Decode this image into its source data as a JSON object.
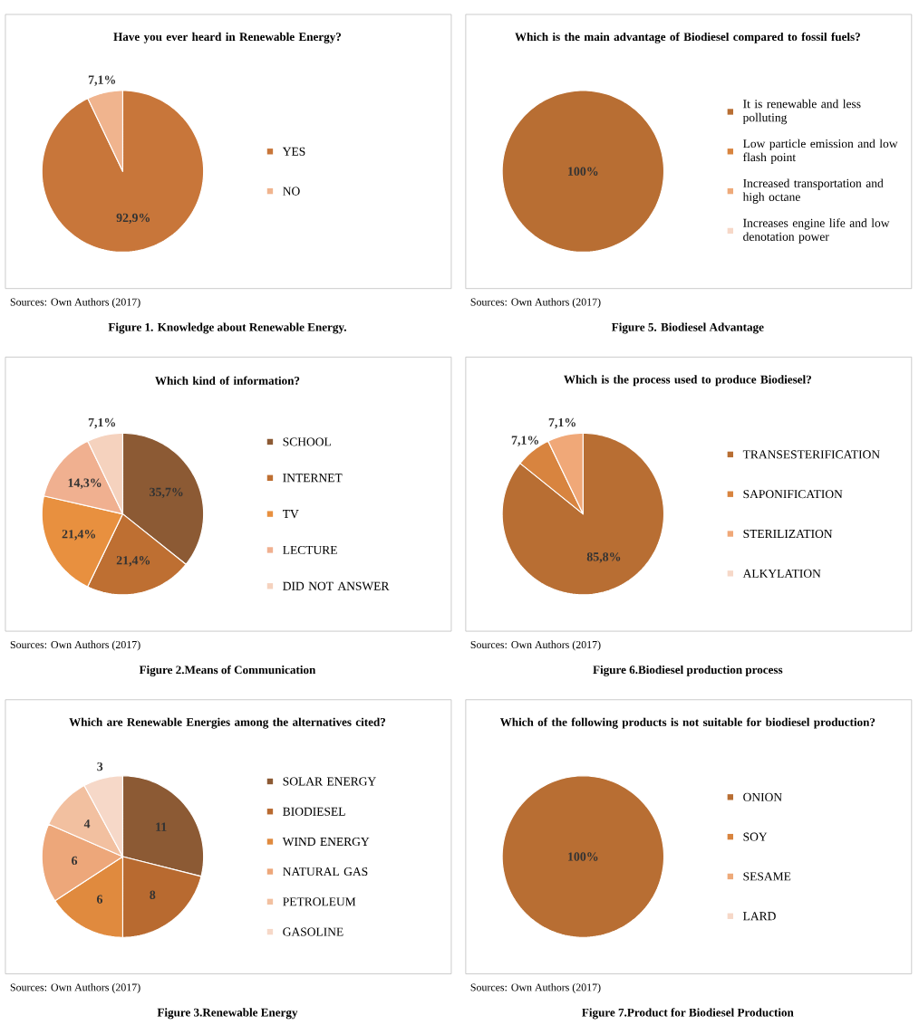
{
  "chart_data": [
    {
      "type": "pie",
      "title": "Have you ever heard in Renewable Energy?",
      "categories": [
        "YES",
        "NO"
      ],
      "values": [
        92.9,
        7.1
      ],
      "colors": [
        "#c8763a",
        "#f0b48e"
      ],
      "value_labels": [
        "92,9%",
        "7,1%"
      ],
      "legend": "right",
      "annotations": [
        "Sources: Own Authors (2017)",
        "Figure 1. Knowledge about Renewable Energy."
      ]
    },
    {
      "type": "pie",
      "title": "Which is the main advantage of Biodiesel compared to fossil fuels?",
      "categories": [
        "It is renewable and less polluting",
        "Low particle emission and low flash point",
        "Increased transportation and high octane",
        "Increases engine life and low denotation power"
      ],
      "values": [
        100,
        0,
        0,
        0
      ],
      "colors": [
        "#b86e33",
        "#d8843f",
        "#eeaa7a",
        "#f6d8c8"
      ],
      "value_labels": [
        "100%",
        null,
        null,
        null
      ],
      "legend": "right",
      "annotations": [
        "Sources: Own Authors (2017)",
        "Figure 5. Biodiesel Advantage"
      ]
    },
    {
      "type": "pie",
      "title": "Which kind of information?",
      "categories": [
        "SCHOOL",
        "INTERNET",
        "TV",
        "LECTURE",
        "DID NOT ANSWER"
      ],
      "values": [
        35.7,
        21.4,
        21.4,
        14.3,
        7.1
      ],
      "colors": [
        "#8c5a34",
        "#be6f32",
        "#e8903f",
        "#f0b090",
        "#f5d2be"
      ],
      "value_labels": [
        "35,7%",
        "21,4%",
        "21,4%",
        "14,3%",
        "7,1%"
      ],
      "legend": "right",
      "annotations": [
        "Sources: Own Authors (2017)",
        "Figure 2.Means of Communication"
      ]
    },
    {
      "type": "pie",
      "title": "Which is the process used to produce Biodiesel?",
      "categories": [
        "TRANSESTERIFICATION",
        "SAPONIFICATION",
        "STERILIZATION",
        "ALKYLATION"
      ],
      "values": [
        85.8,
        7.1,
        7.1,
        0
      ],
      "colors": [
        "#b86e33",
        "#d8843f",
        "#f0a878",
        "#f6d8c8"
      ],
      "value_labels": [
        "85,8%",
        "7,1%",
        "7,1%",
        null
      ],
      "legend": "right",
      "annotations": [
        "Sources: Own Authors (2017)",
        "Figure 6.Biodiesel production process"
      ]
    },
    {
      "type": "pie",
      "title": "Which are Renewable Energies among the alternatives cited?",
      "categories": [
        "SOLAR ENERGY",
        "BIODIESEL",
        "WIND ENERGY",
        "NATURAL GAS",
        "PETROLEUM",
        "GASOLINE"
      ],
      "values": [
        11,
        8,
        6,
        6,
        4,
        3
      ],
      "colors": [
        "#8c5a34",
        "#b86a30",
        "#e08a3e",
        "#eda77a",
        "#f2c0a0",
        "#f6d8c8"
      ],
      "data_labels": true,
      "legend": "right",
      "annotations": [
        "Sources: Own Authors (2017)",
        "Figure 3.Renewable Energy"
      ]
    },
    {
      "type": "pie",
      "title": "Which of the following products is not suitable for biodiesel production?",
      "categories": [
        "ONION",
        "SOY",
        "SESAME",
        "LARD"
      ],
      "values": [
        100,
        0,
        0,
        0
      ],
      "colors": [
        "#b86e33",
        "#d8843f",
        "#eeaa7a",
        "#f6d8c8"
      ],
      "value_labels": [
        "100%",
        null,
        null,
        null
      ],
      "legend": "right",
      "annotations": [
        "Sources: Own Authors (2017)",
        "Figure 7.Product for Biodiesel Production"
      ]
    }
  ]
}
